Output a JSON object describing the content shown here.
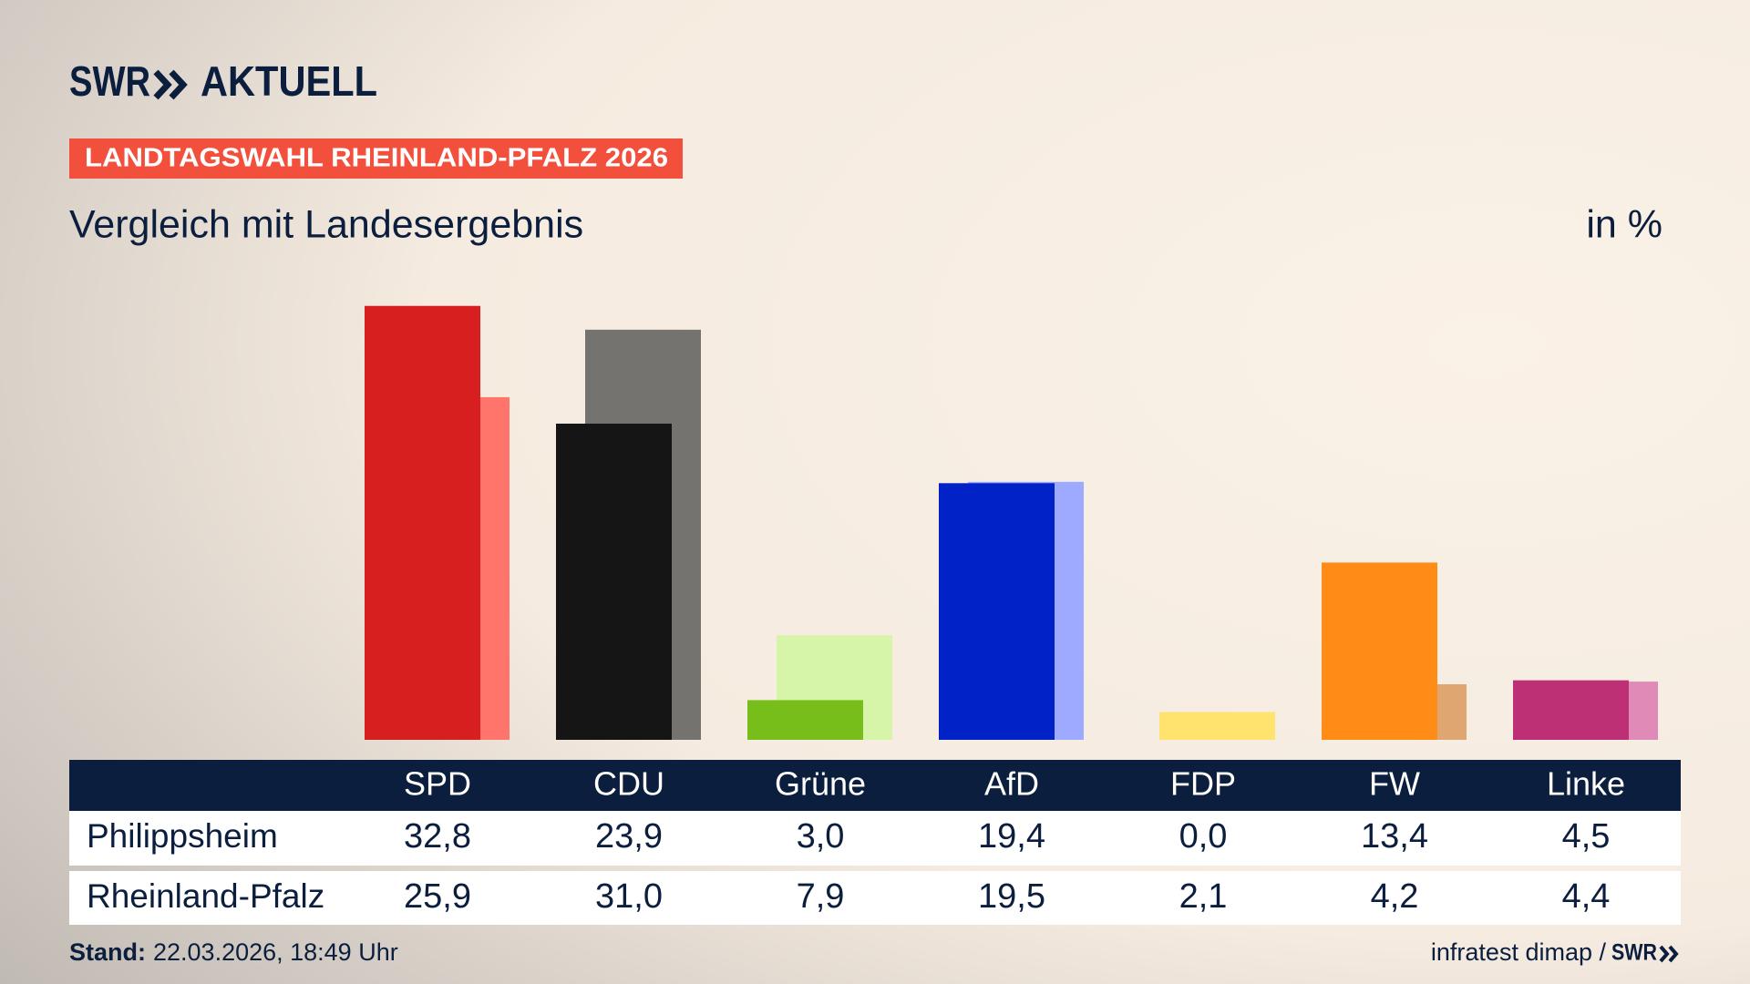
{
  "header": {
    "logo": "SWR",
    "logo_suffix": "AKTUELL",
    "tag": "LANDTAGSWAHL RHEINLAND-PFALZ 2026"
  },
  "chart_data": {
    "type": "bar",
    "subtitle": "Vergleich mit Landesergebnis",
    "unit_label": "in %",
    "categories": [
      "SPD",
      "CDU",
      "Grüne",
      "AfD",
      "FDP",
      "FW",
      "Linke"
    ],
    "series": [
      {
        "name": "Philippsheim",
        "colors": [
          "#d71f1f",
          "#151515",
          "#78be1a",
          "#0022c6",
          "#ffe16b",
          "#ff8c16",
          "#bd3075"
        ],
        "values": [
          32.8,
          23.9,
          3.0,
          19.4,
          0.0,
          13.4,
          4.5
        ],
        "value_labels": [
          "32,8",
          "23,9",
          "3,0",
          "19,4",
          "0,0",
          "13,4",
          "4,5"
        ]
      },
      {
        "name": "Rheinland-Pfalz",
        "colors": [
          "#ff756b",
          "#757370",
          "#d7f5a8",
          "#9eaaff",
          "#ffe36e",
          "#e0a672",
          "#e08ab8"
        ],
        "values": [
          25.9,
          31.0,
          7.9,
          19.5,
          2.1,
          4.2,
          4.4
        ],
        "value_labels": [
          "25,9",
          "31,0",
          "7,9",
          "19,5",
          "2,1",
          "4,2",
          "4,4"
        ]
      }
    ]
  },
  "footer": {
    "stand_label": "Stand:",
    "stand": "22.03.2026, 18:49 Uhr",
    "source": "infratest dimap /",
    "source_logo": "SWR"
  }
}
